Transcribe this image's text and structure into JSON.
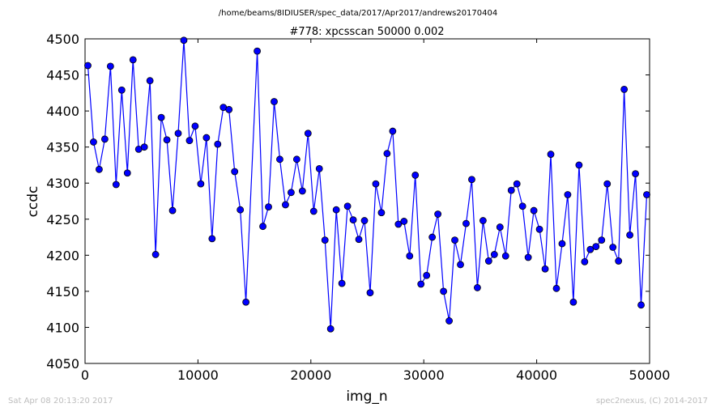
{
  "supertitle": "/home/beams/8IDIUSER/spec_data/2017/Apr2017/andrews20170404",
  "footer_left": "Sat Apr 08 20:13:20 2017",
  "footer_right": "spec2nexus, (C) 2014-2017",
  "colors": {
    "series": "#0000ff",
    "axes": "#000000",
    "footer": "#bdbdbd"
  },
  "chart_data": {
    "type": "line",
    "title": "#778: xpcsscan 50000 0.002",
    "xlabel": "img_n",
    "ylabel": "ccdc",
    "xlim": [
      0,
      50000
    ],
    "ylim": [
      4050,
      4500
    ],
    "xticks": [
      0,
      10000,
      20000,
      30000,
      40000,
      50000
    ],
    "yticks": [
      4050,
      4100,
      4150,
      4200,
      4250,
      4300,
      4350,
      4400,
      4450,
      4500
    ],
    "grid": false,
    "marker": "circle",
    "series": [
      {
        "x": [
          250,
          750,
          1250,
          1750,
          2250,
          2750,
          3250,
          3750,
          4250,
          4750,
          5250,
          5750,
          6250,
          6750,
          7250,
          7750,
          8250,
          8750,
          9250,
          9750,
          10250,
          10750,
          11250,
          11750,
          12250,
          12750,
          13250,
          13750,
          14250,
          15250,
          15750,
          16250,
          16750,
          17250,
          17750,
          18250,
          18750,
          19250,
          19750,
          20250,
          20750,
          21250,
          21750,
          22250,
          22750,
          23250,
          23750,
          24250,
          24750,
          25250,
          25750,
          26250,
          26750,
          27250,
          27750,
          28250,
          28750,
          29250,
          29750,
          30250,
          30750,
          31250,
          31750,
          32250,
          32750,
          33250,
          33750,
          34250,
          34750,
          35250,
          35750,
          36250,
          36750,
          37250,
          37750,
          38250,
          38750,
          39250,
          39750,
          40250,
          40750,
          41250,
          41750,
          42250,
          42750,
          43250,
          43750,
          44250,
          44750,
          45250,
          45750,
          46250,
          46750,
          47250,
          47750,
          48250,
          48750,
          49250,
          49750
        ],
        "y": [
          4463,
          4357,
          4319,
          4361,
          4462,
          4298,
          4429,
          4314,
          4471,
          4347,
          4350,
          4442,
          4201,
          4391,
          4360,
          4262,
          4369,
          4498,
          4359,
          4379,
          4299,
          4363,
          4223,
          4354,
          4405,
          4402,
          4316,
          4263,
          4135,
          4483,
          4240,
          4267,
          4413,
          4333,
          4270,
          4287,
          4333,
          4289,
          4369,
          4261,
          4320,
          4221,
          4098,
          4263,
          4161,
          4268,
          4249,
          4222,
          4248,
          4148,
          4299,
          4259,
          4341,
          4372,
          4243,
          4247,
          4199,
          4311,
          4160,
          4172,
          4225,
          4257,
          4150,
          4109,
          4221,
          4187,
          4244,
          4305,
          4155,
          4248,
          4192,
          4201,
          4239,
          4199,
          4290,
          4299,
          4268,
          4197,
          4262,
          4236,
          4181,
          4340,
          4154,
          4216,
          4284,
          4135,
          4325,
          4191,
          4208,
          4212,
          4221,
          4299,
          4211,
          4192,
          4430,
          4228,
          4313,
          4131,
          4284
        ]
      }
    ]
  }
}
